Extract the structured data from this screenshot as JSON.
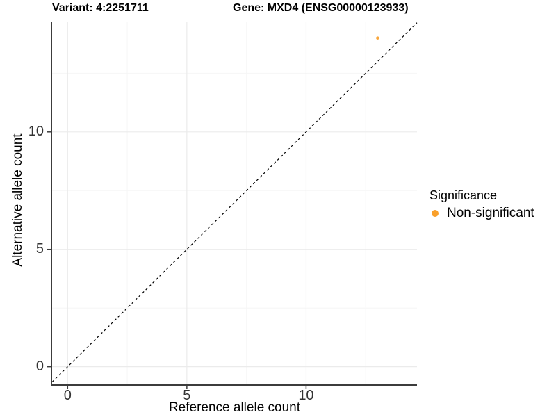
{
  "title": {
    "left": "Variant: 4:2251711",
    "right": "Gene: MXD4 (ENSG00000123933)"
  },
  "chart_data": {
    "type": "scatter",
    "title_left": "Variant: 4:2251711",
    "title_right": "Gene: MXD4 (ENSG00000123933)",
    "xlabel": "Reference allele count",
    "ylabel": "Alternative allele count",
    "xlim": [
      -0.65,
      14.65
    ],
    "ylim": [
      -0.75,
      14.7
    ],
    "x_major_ticks": [
      0,
      5,
      10
    ],
    "y_major_ticks": [
      0,
      5,
      10
    ],
    "x_minor_ticks": [
      2.5,
      7.5,
      12.5
    ],
    "y_minor_ticks": [
      2.5,
      7.5,
      12.5
    ],
    "grid": "major+minor on white background",
    "points": [
      {
        "x": 13,
        "y": 14,
        "significance": "Non-significant"
      }
    ],
    "point_size": 2.3,
    "identity_line": {
      "style": "dashed",
      "slope": 1,
      "intercept": 0,
      "color": "#000000"
    },
    "legend": {
      "title": "Significance",
      "position": "right",
      "items": [
        {
          "label": "Non-significant",
          "color": "#F9A02B"
        }
      ]
    }
  },
  "colors": {
    "accent_orange": "#F9A02B",
    "grid_major": "#EBEBEB",
    "grid_minor": "#F6F6F6",
    "axis_line": "#3C3C3C",
    "tick_label": "#333333",
    "text": "#000000",
    "background": "#FFFFFF"
  }
}
